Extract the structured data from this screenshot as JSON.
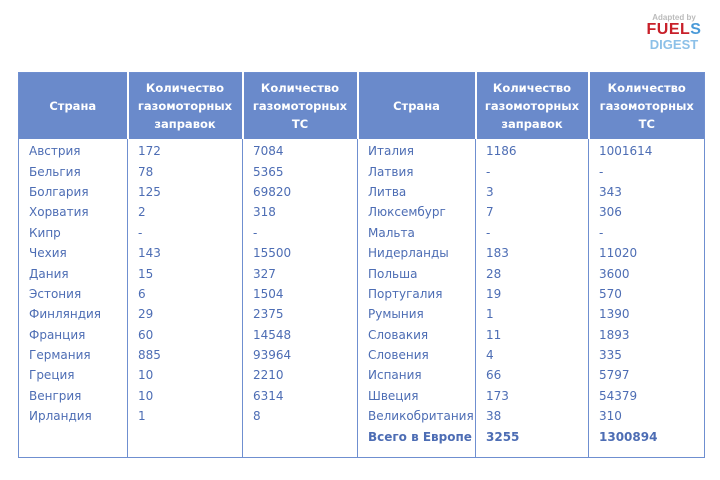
{
  "logo": {
    "adapted": "Adapted by",
    "fuel": "FUEL",
    "digest": "DIGEST"
  },
  "headers": [
    "Страна",
    "Количество газомоторных заправок",
    "Количество газомоторных ТС",
    "Страна",
    "Количество газомоторных заправок",
    "Количество газомоторных ТС"
  ],
  "left_rows": [
    [
      "Австрия",
      "172",
      "7084"
    ],
    [
      "Бельгия",
      "78",
      "5365"
    ],
    [
      "Болгария",
      "125",
      "69820"
    ],
    [
      "Хорватия",
      "2",
      "318"
    ],
    [
      "Кипр",
      "-",
      "-"
    ],
    [
      "Чехия",
      "143",
      "15500"
    ],
    [
      "Дания",
      "15",
      "327"
    ],
    [
      "Эстония",
      "6",
      "1504"
    ],
    [
      "Финляндия",
      "29",
      "2375"
    ],
    [
      "Франция",
      "60",
      "14548"
    ],
    [
      "Германия",
      "885",
      "93964"
    ],
    [
      "Греция",
      "10",
      "2210"
    ],
    [
      "Венгрия",
      "10",
      "6314"
    ],
    [
      "Ирландия",
      "1",
      "8"
    ]
  ],
  "right_rows": [
    [
      "Италия",
      "1186",
      "1001614"
    ],
    [
      "Латвия",
      "-",
      "-"
    ],
    [
      "Литва",
      "3",
      "343"
    ],
    [
      "Люксембург",
      "7",
      "306"
    ],
    [
      "Мальта",
      "-",
      "-"
    ],
    [
      "Нидерланды",
      "183",
      "11020"
    ],
    [
      "Польша",
      "28",
      "3600"
    ],
    [
      "Португалия",
      "19",
      "570"
    ],
    [
      "Румыния",
      "1",
      "1390"
    ],
    [
      "Словакия",
      "11",
      "1893"
    ],
    [
      "Словения",
      "4",
      "335"
    ],
    [
      "Испания",
      "66",
      "5797"
    ],
    [
      "Швеция",
      "173",
      "54379"
    ],
    [
      "Великобритания",
      "38",
      "310"
    ]
  ],
  "total": {
    "label": "Всего в Европе",
    "stations": "3255",
    "vehicles": "1300894"
  },
  "colors": {
    "header_bg": "#6a8acb",
    "text": "#4d6db4",
    "border": "#6f8fd0"
  }
}
